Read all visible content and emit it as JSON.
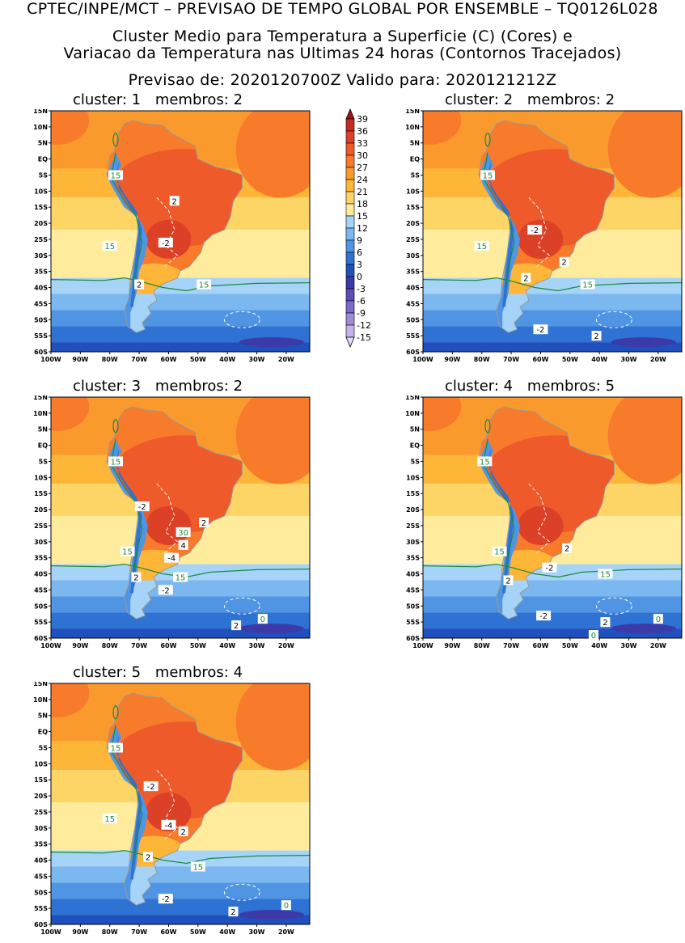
{
  "header": {
    "line1": "CPTEC/INPE/MCT – PREVISAO DE TEMPO GLOBAL POR ENSEMBLE – TQ0126L028",
    "line2": "Cluster Medio para Temperatura a Superficie (C) (Cores) e",
    "line3": "Variacao da Temperatura nas Ultimas 24 horas (Contornos Tracejados)",
    "line4": "Previsao de: 2020120700Z    Valido para: 2020121212Z"
  },
  "axes": {
    "lat_labels": [
      "15N",
      "10N",
      "5N",
      "EQ",
      "5S",
      "10S",
      "15S",
      "20S",
      "25S",
      "30S",
      "35S",
      "40S",
      "45S",
      "50S",
      "55S",
      "60S"
    ],
    "lon_labels": [
      "100W",
      "90W",
      "80W",
      "70W",
      "60W",
      "50W",
      "40W",
      "30W",
      "20W"
    ]
  },
  "colorbar": {
    "labels": [
      "39",
      "36",
      "33",
      "30",
      "27",
      "24",
      "21",
      "18",
      "15",
      "12",
      "9",
      "6",
      "3",
      "0",
      "-3",
      "-6",
      "-9",
      "-12",
      "-15"
    ],
    "colors": [
      "#a50f15",
      "#c62a22",
      "#dc4128",
      "#ef5a2a",
      "#f87a2b",
      "#fb9a2c",
      "#fdb638",
      "#fdd567",
      "#feec9c",
      "#a6d3f8",
      "#7bb8ef",
      "#4f95e4",
      "#2e72d4",
      "#2050bd",
      "#3c3aa8",
      "#5c4bb8",
      "#7e68c8",
      "#a18ad6",
      "#c4b3e6",
      "#e6dcf3"
    ]
  },
  "panels": [
    {
      "title": "cluster: 1",
      "members_label": "membros: 2",
      "contour_labels": [
        {
          "text": "15",
          "lon": -78,
          "lat": -5,
          "type": "temp"
        },
        {
          "text": "15",
          "lon": -80,
          "lat": -27,
          "type": "temp"
        },
        {
          "text": "15",
          "lon": -48,
          "lat": -39,
          "type": "temp"
        },
        {
          "text": "2",
          "lon": -58,
          "lat": -13,
          "type": "delta"
        },
        {
          "text": "-2",
          "lon": -61,
          "lat": -26,
          "type": "delta"
        },
        {
          "text": "2",
          "lon": -70,
          "lat": -39,
          "type": "delta"
        }
      ]
    },
    {
      "title": "cluster: 2",
      "members_label": "membros: 2",
      "contour_labels": [
        {
          "text": "15",
          "lon": -78,
          "lat": -5,
          "type": "temp"
        },
        {
          "text": "15",
          "lon": -80,
          "lat": -27,
          "type": "temp"
        },
        {
          "text": "15",
          "lon": -44,
          "lat": -39,
          "type": "temp"
        },
        {
          "text": "-2",
          "lon": -62,
          "lat": -22,
          "type": "delta"
        },
        {
          "text": "2",
          "lon": -52,
          "lat": -32,
          "type": "delta"
        },
        {
          "text": "2",
          "lon": -65,
          "lat": -37,
          "type": "delta"
        },
        {
          "text": "-2",
          "lon": -60,
          "lat": -53,
          "type": "delta"
        },
        {
          "text": "2",
          "lon": -41,
          "lat": -55,
          "type": "delta"
        }
      ]
    },
    {
      "title": "cluster: 3",
      "members_label": "membros: 2",
      "contour_labels": [
        {
          "text": "15",
          "lon": -78,
          "lat": -5,
          "type": "temp"
        },
        {
          "text": "15",
          "lon": -74,
          "lat": -33,
          "type": "temp"
        },
        {
          "text": "15",
          "lon": -56,
          "lat": -41,
          "type": "temp"
        },
        {
          "text": "30",
          "lon": -55,
          "lat": -27,
          "type": "temp"
        },
        {
          "text": "0",
          "lon": -28,
          "lat": -54,
          "type": "temp"
        },
        {
          "text": "-2",
          "lon": -69,
          "lat": -19,
          "type": "delta"
        },
        {
          "text": "2",
          "lon": -48,
          "lat": -24,
          "type": "delta"
        },
        {
          "text": "4",
          "lon": -55,
          "lat": -31,
          "type": "delta"
        },
        {
          "text": "-4",
          "lon": -59,
          "lat": -35,
          "type": "delta"
        },
        {
          "text": "2",
          "lon": -71,
          "lat": -41,
          "type": "delta"
        },
        {
          "text": "-2",
          "lon": -61,
          "lat": -45,
          "type": "delta"
        },
        {
          "text": "2",
          "lon": -37,
          "lat": -56,
          "type": "delta"
        }
      ]
    },
    {
      "title": "cluster: 4",
      "members_label": "membros: 5",
      "contour_labels": [
        {
          "text": "15",
          "lon": -79,
          "lat": -5,
          "type": "temp"
        },
        {
          "text": "15",
          "lon": -74,
          "lat": -33,
          "type": "temp"
        },
        {
          "text": "15",
          "lon": -38,
          "lat": -40,
          "type": "temp"
        },
        {
          "text": "0",
          "lon": -20,
          "lat": -54,
          "type": "temp"
        },
        {
          "text": "0",
          "lon": -42,
          "lat": -59,
          "type": "temp"
        },
        {
          "text": "2",
          "lon": -51,
          "lat": -32,
          "type": "delta"
        },
        {
          "text": "-2",
          "lon": -57,
          "lat": -38,
          "type": "delta"
        },
        {
          "text": "2",
          "lon": -71,
          "lat": -42,
          "type": "delta"
        },
        {
          "text": "-2",
          "lon": -59,
          "lat": -53,
          "type": "delta"
        },
        {
          "text": "2",
          "lon": -38,
          "lat": -55,
          "type": "delta"
        }
      ]
    },
    {
      "title": "cluster: 5",
      "members_label": "membros: 4",
      "contour_labels": [
        {
          "text": "15",
          "lon": -78,
          "lat": -5,
          "type": "temp"
        },
        {
          "text": "15",
          "lon": -80,
          "lat": -27,
          "type": "temp"
        },
        {
          "text": "15",
          "lon": -50,
          "lat": -42,
          "type": "temp"
        },
        {
          "text": "0",
          "lon": -20,
          "lat": -54,
          "type": "temp"
        },
        {
          "text": "-2",
          "lon": -66,
          "lat": -17,
          "type": "delta"
        },
        {
          "text": "-4",
          "lon": -60,
          "lat": -29,
          "type": "delta"
        },
        {
          "text": "2",
          "lon": -55,
          "lat": -31,
          "type": "delta"
        },
        {
          "text": "2",
          "lon": -67,
          "lat": -39,
          "type": "delta"
        },
        {
          "text": "-2",
          "lon": -61,
          "lat": -52,
          "type": "delta"
        },
        {
          "text": "2",
          "lon": -38,
          "lat": -56,
          "type": "delta"
        }
      ]
    }
  ]
}
